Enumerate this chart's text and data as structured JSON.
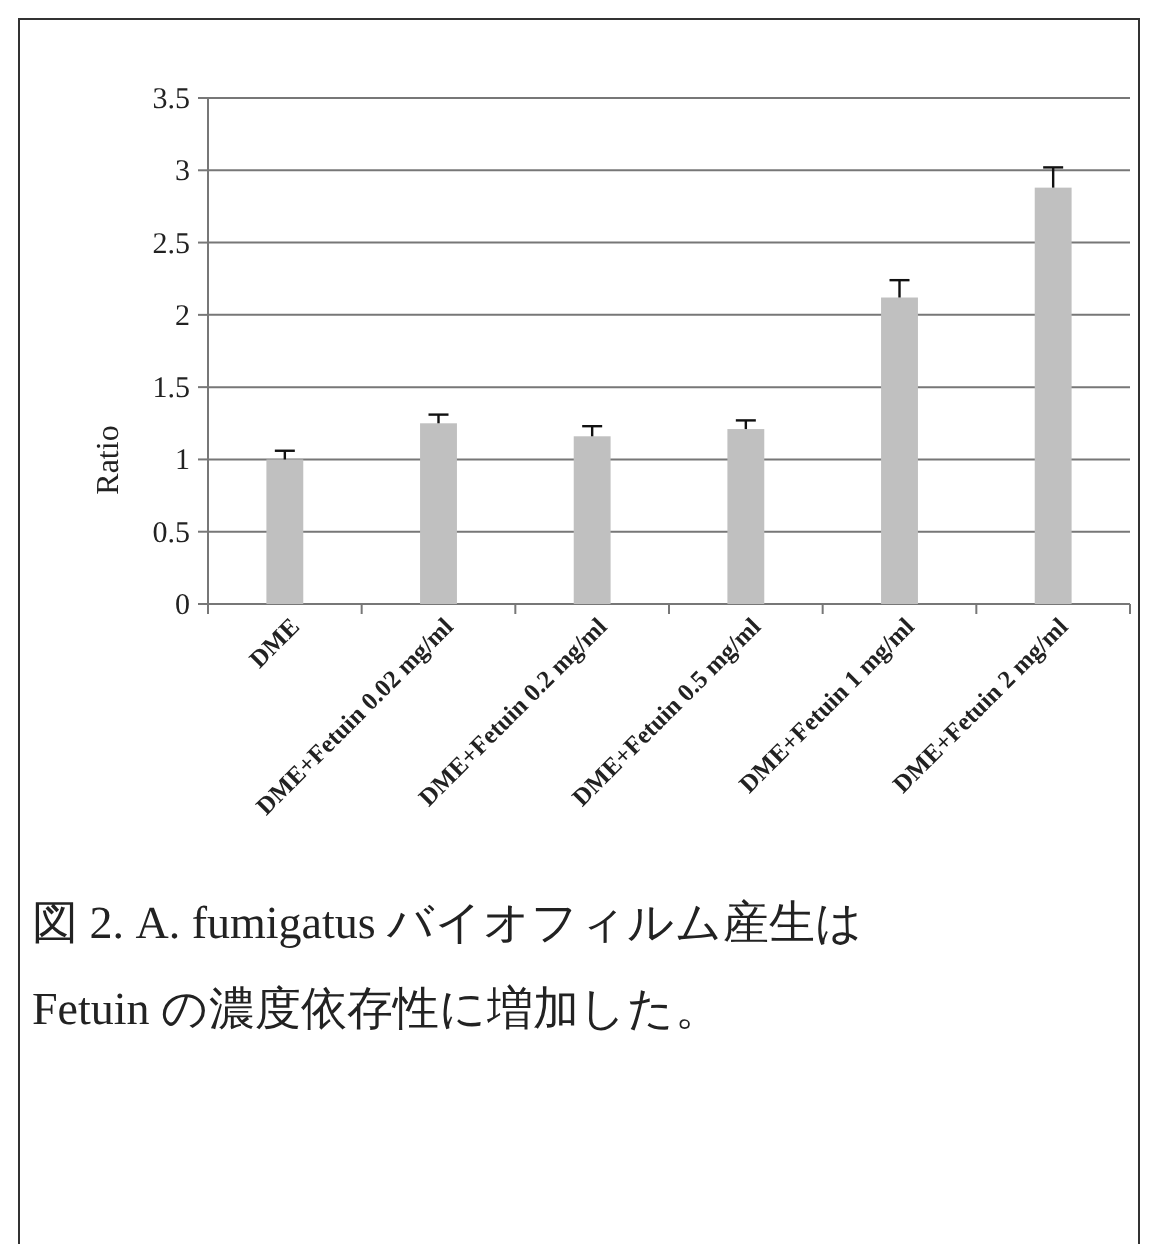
{
  "chart_data": {
    "type": "bar",
    "ylabel": "Ratio",
    "categories": [
      "DME",
      "DME+Fetuin 0.02 mg/ml",
      "DME+Fetuin 0.2 mg/ml",
      "DME+Fetuin 0.5 mg/ml",
      "DME+Fetuin 1 mg/ml",
      "DME+Fetuin 2 mg/ml"
    ],
    "values": [
      1.0,
      1.25,
      1.16,
      1.21,
      2.12,
      2.88
    ],
    "errors": [
      [
        1.0,
        1.06
      ],
      [
        1.25,
        1.31
      ],
      [
        1.16,
        1.23
      ],
      [
        1.21,
        1.27
      ],
      [
        2.12,
        2.24
      ],
      [
        2.88,
        3.02
      ]
    ],
    "color": "#c0c0c0",
    "ylim": [
      0,
      3.5
    ],
    "yticks": [
      0,
      0.5,
      1,
      1.5,
      2,
      2.5,
      3,
      3.5
    ],
    "grid": "y",
    "annotations": [
      "図 2. A. fumigatus バイオフィルム産生はFetuin の濃度依存性に増加した。"
    ]
  }
}
